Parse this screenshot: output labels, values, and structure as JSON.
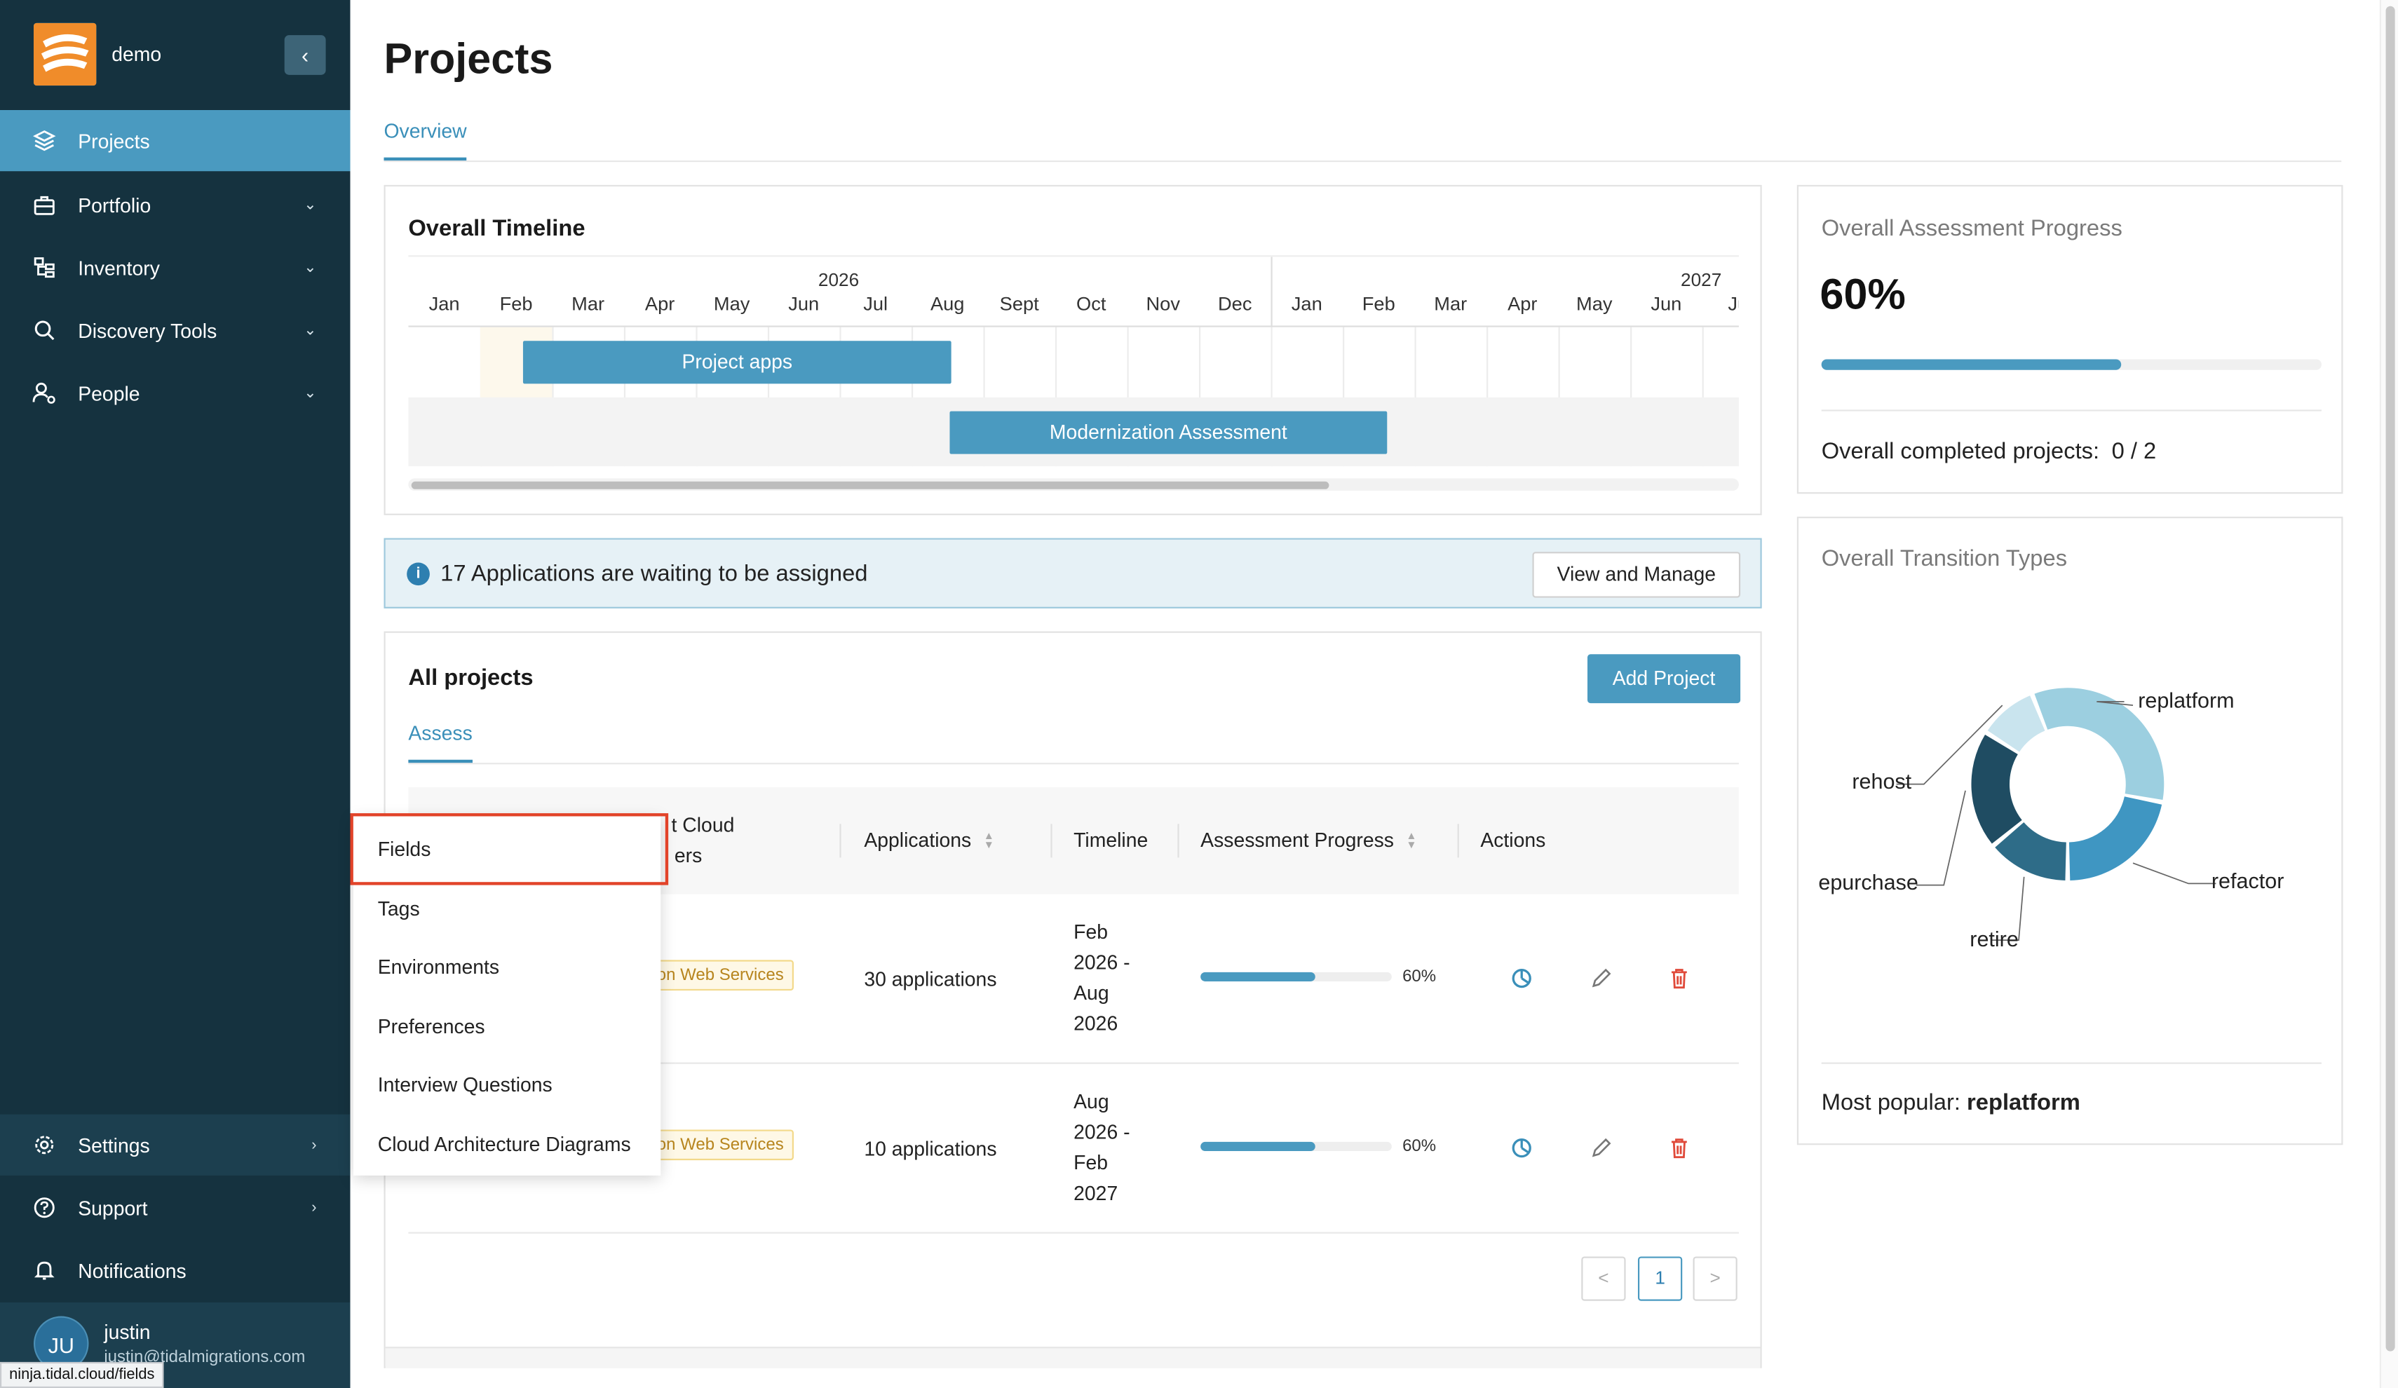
{
  "brand": {
    "name": "demo",
    "collapse_icon": "chevron-left-icon"
  },
  "nav": {
    "projects": "Projects",
    "portfolio": "Portfolio",
    "inventory": "Inventory",
    "discovery": "Discovery Tools",
    "people": "People",
    "settings": "Settings",
    "support": "Support",
    "notifications": "Notifications"
  },
  "user": {
    "initials": "JU",
    "name": "justin",
    "email": "justin@tidalmigrations.com"
  },
  "status_url": "ninja.tidal.cloud/fields",
  "page": {
    "title": "Projects",
    "tab": "Overview"
  },
  "timeline": {
    "title": "Overall Timeline",
    "years": [
      "2026",
      "2027"
    ],
    "months": [
      "Jan",
      "Feb",
      "Mar",
      "Apr",
      "May",
      "Jun",
      "Jul",
      "Aug",
      "Sept",
      "Oct",
      "Nov",
      "Dec",
      "Jan",
      "Feb",
      "Mar",
      "Apr",
      "May",
      "Jun",
      "Ju"
    ],
    "bars": [
      "Project apps",
      "Modernization Assessment"
    ]
  },
  "banner": {
    "text": "17 Applications are waiting to be assigned",
    "button": "View and Manage"
  },
  "all_projects": {
    "title": "All projects",
    "add_button": "Add Project",
    "tab": "Assess",
    "columns": {
      "cloud_line1": "t Cloud",
      "cloud_line2": "ers",
      "applications": "Applications",
      "timeline": "Timeline",
      "progress": "Assessment Progress",
      "actions": "Actions"
    },
    "rows": [
      {
        "tag": "con Web Services",
        "applications": "30 applications",
        "t1": "Feb",
        "t2": "2026 -",
        "t3": "Aug",
        "t4": "2026",
        "progress_pct": 60,
        "progress_label": "60%"
      },
      {
        "tag": "con Web Services",
        "applications": "10 applications",
        "t1": "Aug",
        "t2": "2026 -",
        "t3": "Feb",
        "t4": "2027",
        "progress_pct": 60,
        "progress_label": "60%"
      }
    ],
    "pager": {
      "prev": "<",
      "page": "1",
      "next": ">"
    }
  },
  "settings_menu": [
    "Fields",
    "Tags",
    "Environments",
    "Preferences",
    "Interview Questions",
    "Cloud Architecture Diagrams"
  ],
  "assessment": {
    "label": "Overall Assessment Progress",
    "percent_label": "60%",
    "percent": 60,
    "completed_label": "Overall completed projects:",
    "completed_value": "0 / 2"
  },
  "transition": {
    "label": "Overall Transition Types",
    "most_popular_label": "Most popular:",
    "most_popular_value": "replatform"
  },
  "chart_data": {
    "type": "pie",
    "donut": true,
    "categories": [
      "replatform",
      "refactor",
      "retire",
      "repurchase",
      "rehost"
    ],
    "labels_shown": [
      "replatform",
      "refactor",
      "retire",
      "epurchase",
      "rehost"
    ],
    "values": [
      34,
      22,
      14,
      20,
      10
    ],
    "colors": [
      "#9ccfe0",
      "#3f96c2",
      "#2e6c88",
      "#1f4c62",
      "#c9e4ee"
    ]
  }
}
